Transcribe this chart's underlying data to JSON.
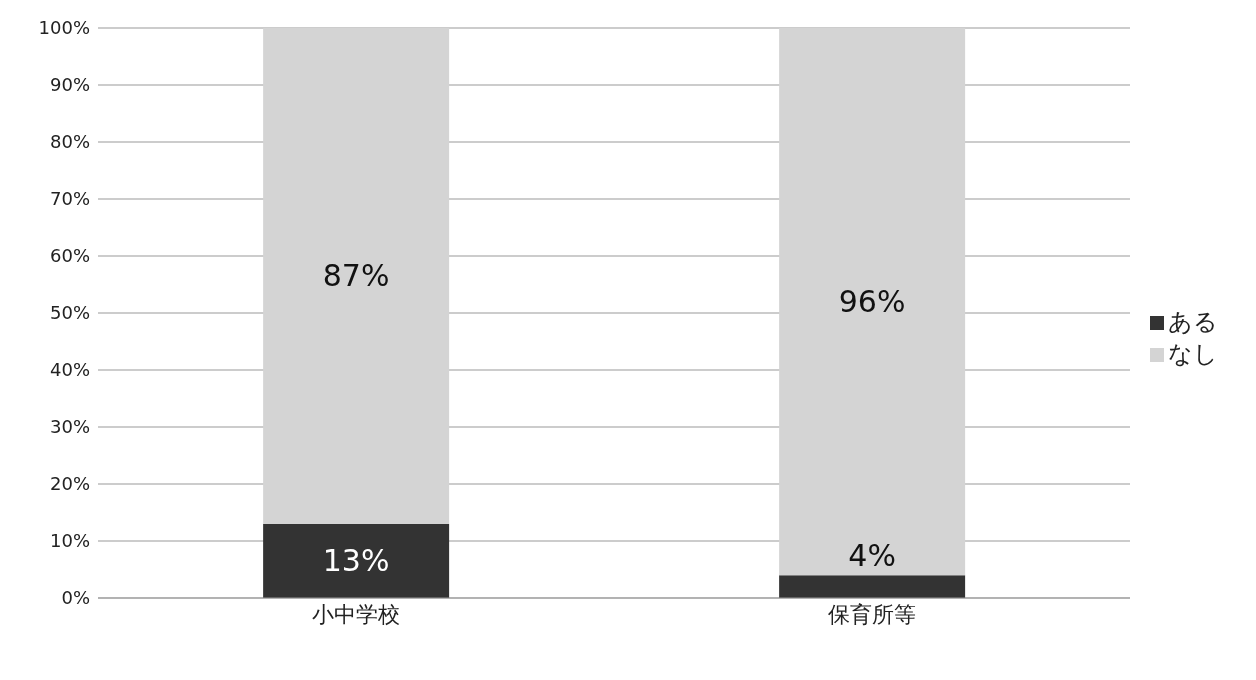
{
  "chart_data": {
    "type": "bar",
    "stacked": true,
    "categories": [
      "小中学校",
      "保育所等"
    ],
    "series": [
      {
        "name": "ある",
        "color": "#333333",
        "values": [
          13,
          4
        ],
        "value_labels": [
          "13%",
          "4%"
        ]
      },
      {
        "name": "なし",
        "color": "#d4d4d4",
        "values": [
          87,
          96
        ],
        "value_labels": [
          "87%",
          "96%"
        ]
      }
    ],
    "ylim": [
      0,
      100
    ],
    "yticks": [
      {
        "value": 0,
        "label": "0%"
      },
      {
        "value": 10,
        "label": "10%"
      },
      {
        "value": 20,
        "label": "20%"
      },
      {
        "value": 30,
        "label": "30%"
      },
      {
        "value": 40,
        "label": "40%"
      },
      {
        "value": 50,
        "label": "50%"
      },
      {
        "value": 60,
        "label": "60%"
      },
      {
        "value": 70,
        "label": "70%"
      },
      {
        "value": 80,
        "label": "80%"
      },
      {
        "value": 90,
        "label": "90%"
      },
      {
        "value": 100,
        "label": "100%"
      }
    ],
    "grid": "y",
    "legend": "right"
  }
}
